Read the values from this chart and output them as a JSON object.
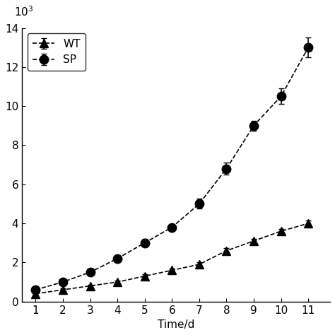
{
  "x": [
    1,
    2,
    3,
    4,
    5,
    6,
    7,
    8,
    9,
    10,
    11
  ],
  "wt_y": [
    400,
    600,
    800,
    1000,
    1300,
    1600,
    1900,
    2600,
    3100,
    3600,
    4000
  ],
  "sp_y": [
    600,
    1000,
    1500,
    2200,
    3000,
    3800,
    5000,
    6800,
    9000,
    10500,
    13000
  ],
  "wt_yerr": [
    60,
    80,
    70,
    80,
    100,
    80,
    120,
    150,
    120,
    120,
    150
  ],
  "sp_yerr": [
    80,
    80,
    120,
    150,
    200,
    120,
    250,
    300,
    250,
    400,
    500
  ],
  "wt_label": "WT",
  "sp_label": "SP",
  "xlabel": "Time/d",
  "ylabel_exponent": "10$^3$",
  "xlim": [
    0.5,
    11.8
  ],
  "ylim": [
    0,
    14000
  ],
  "yticks": [
    0,
    2000,
    4000,
    6000,
    8000,
    10000,
    12000,
    14000
  ],
  "ytick_labels": [
    "0",
    "2",
    "4",
    "6",
    "8",
    "10",
    "12",
    "14"
  ],
  "xticks": [
    1,
    2,
    3,
    4,
    5,
    6,
    7,
    8,
    9,
    10,
    11
  ],
  "line_color": "#000000",
  "marker_wt": "^",
  "marker_sp": "o",
  "marker_size_wt": 8,
  "marker_size_sp": 9,
  "linewidth": 1.2,
  "capsize": 3,
  "legend_loc": "upper left",
  "figsize": [
    4.74,
    4.74
  ],
  "dpi": 100,
  "font_size": 11,
  "tick_labelsize": 11
}
